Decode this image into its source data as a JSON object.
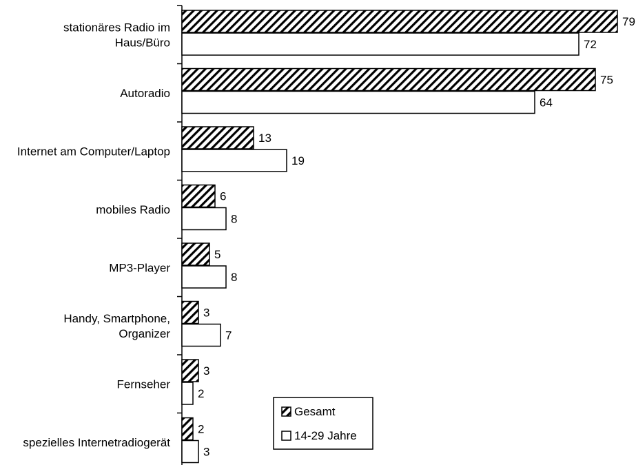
{
  "chart_data": {
    "type": "bar",
    "orientation": "horizontal",
    "categories": [
      [
        "stationäres Radio im",
        "Haus/Büro"
      ],
      [
        "Autoradio"
      ],
      [
        "Internet am Computer/Laptop"
      ],
      [
        "mobiles Radio"
      ],
      [
        "MP3-Player"
      ],
      [
        "Handy, Smartphone,",
        "Organizer"
      ],
      [
        "Fernseher"
      ],
      [
        "spezielles Internetradiogerät"
      ]
    ],
    "series": [
      {
        "name": "Gesamt",
        "values": [
          79,
          75,
          13,
          6,
          5,
          3,
          3,
          2
        ],
        "fill": "hatched"
      },
      {
        "name": "14-29 Jahre",
        "values": [
          72,
          64,
          19,
          8,
          8,
          7,
          2,
          3
        ],
        "fill": "white"
      }
    ],
    "xlim": [
      0,
      79
    ],
    "title": "",
    "xlabel": "",
    "ylabel": "",
    "grid": false,
    "legend_position": "bottom-center",
    "colors": {
      "bar_stroke": "#000000",
      "hatch": "#000000",
      "background": "#ffffff"
    }
  }
}
